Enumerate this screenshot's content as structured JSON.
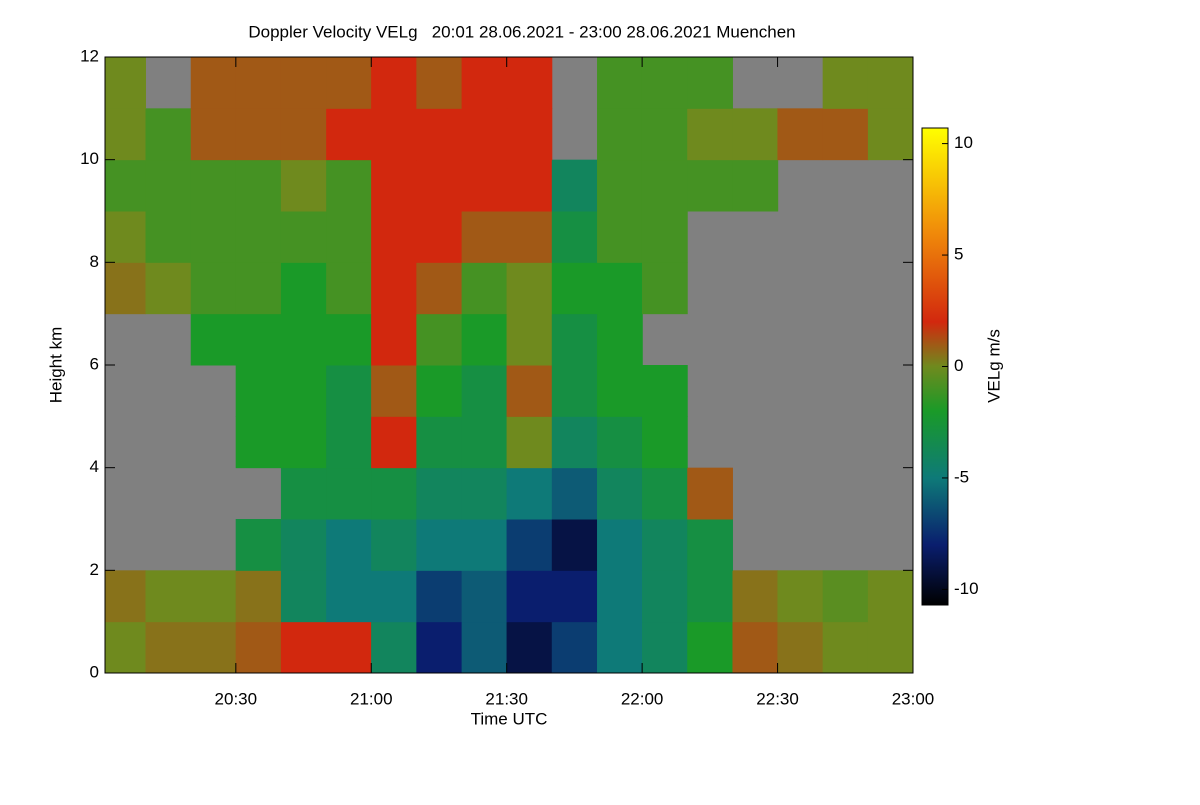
{
  "chart_data": {
    "type": "heatmap",
    "title": "Doppler Velocity VELg   20:01 28.06.2021 - 23:00 28.06.2021 Muenchen",
    "x_label": "Time UTC",
    "y_label": "Height km",
    "colorbar_label": "VELg m/s",
    "x": [
      20.083,
      20.25,
      20.417,
      20.583,
      20.75,
      20.917,
      21.083,
      21.25,
      21.417,
      21.583,
      21.75,
      21.917,
      22.083,
      22.25,
      22.417,
      22.583,
      22.75,
      22.917
    ],
    "y": [
      0.5,
      1.5,
      2.5,
      3.5,
      4.5,
      5.5,
      6.5,
      7.5,
      8.5,
      9.5,
      10.5,
      11.5
    ],
    "values": [
      [
        0,
        0.5,
        0.5,
        1,
        2,
        2,
        -4,
        -8,
        -6,
        -9,
        -7,
        -5,
        -4,
        -2,
        1,
        0.5,
        0,
        0
      ],
      [
        0.5,
        0,
        0,
        0.5,
        -4,
        -5,
        -5,
        -7,
        -6,
        -8,
        -8,
        -5,
        -4,
        -3,
        0.5,
        0,
        -0.5,
        0
      ],
      [
        null,
        null,
        null,
        -3,
        -4,
        -5,
        -4,
        -5,
        -5,
        -7,
        -9,
        -5,
        -4,
        -3,
        null,
        null,
        null,
        null
      ],
      [
        null,
        null,
        null,
        null,
        -3,
        -3,
        -3,
        -4,
        -4,
        -5,
        -6,
        -4,
        -3,
        1,
        null,
        null,
        null,
        null
      ],
      [
        null,
        null,
        null,
        -2,
        -2,
        -3,
        2,
        -3,
        -3,
        0,
        -4,
        -3,
        -2,
        null,
        null,
        null,
        null,
        null
      ],
      [
        null,
        null,
        null,
        -2,
        -2,
        -3,
        1,
        -2,
        -3,
        1,
        -3,
        -2,
        -2,
        null,
        null,
        null,
        null,
        null
      ],
      [
        null,
        null,
        -2,
        -2,
        -2,
        -2,
        2,
        -1,
        -2,
        0,
        -3,
        -2,
        null,
        null,
        null,
        null,
        null,
        null
      ],
      [
        0.5,
        0,
        -1,
        -1,
        -2,
        -1,
        2,
        1,
        -1,
        0,
        -2,
        -2,
        -1,
        null,
        null,
        null,
        null,
        null
      ],
      [
        0,
        -1,
        -1,
        -1,
        -1,
        -1,
        2,
        2,
        1,
        1,
        -3,
        -1,
        -1,
        null,
        null,
        null,
        null,
        null
      ],
      [
        -1,
        -1,
        -1,
        -1,
        0,
        -1,
        2,
        2,
        2,
        2,
        -4,
        -1,
        -1,
        -1,
        -1,
        null,
        null,
        null
      ],
      [
        0,
        -1,
        1,
        1,
        1,
        2,
        2,
        2,
        2,
        2,
        null,
        -1,
        -1,
        0,
        0,
        1,
        1,
        0
      ],
      [
        0,
        null,
        1,
        1,
        1,
        1,
        2,
        1,
        2,
        2,
        null,
        -1,
        -1,
        -1,
        null,
        null,
        0,
        0
      ]
    ],
    "xlim": [
      20.017,
      23.0
    ],
    "xticks": [
      {
        "value": 20.5,
        "label": "20:30"
      },
      {
        "value": 21,
        "label": "21:00"
      },
      {
        "value": 21.5,
        "label": "21:30"
      },
      {
        "value": 22,
        "label": "22:00"
      },
      {
        "value": 22.5,
        "label": "22:30"
      },
      {
        "value": 23,
        "label": "23:00"
      }
    ],
    "ylim": [
      0,
      12
    ],
    "yticks": [
      0,
      2,
      4,
      6,
      8,
      10,
      12
    ],
    "zlim": [
      -10.7,
      10.7
    ],
    "zticks": [
      -10,
      -5,
      0,
      5,
      10
    ],
    "colorscale": [
      [
        -10.7,
        "#000000"
      ],
      [
        -8,
        "#0a1e6e"
      ],
      [
        -5,
        "#0e7a78"
      ],
      [
        -2,
        "#1a9a28"
      ],
      [
        0,
        "#6f8a1e"
      ],
      [
        2,
        "#d2280e"
      ],
      [
        6,
        "#f08a0a"
      ],
      [
        10.7,
        "#ffff00"
      ]
    ],
    "missing_color": "#808080"
  }
}
